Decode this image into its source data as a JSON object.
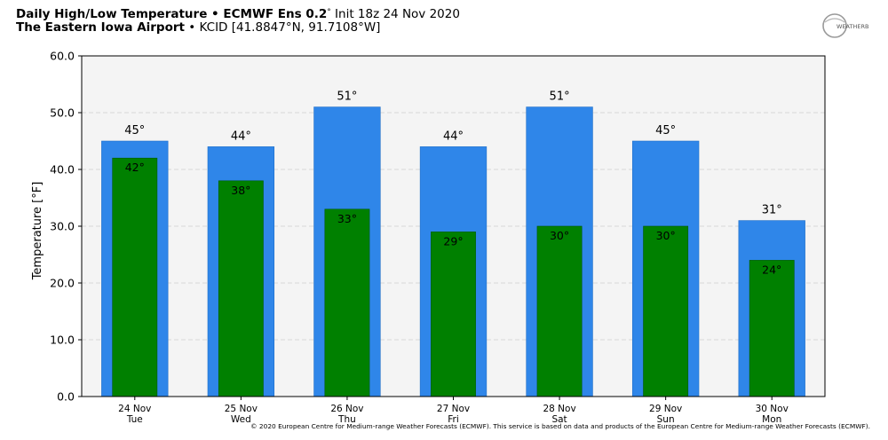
{
  "header": {
    "line1_bold": "Daily High/Low Temperature • ECMWF Ens 0.2",
    "line1_degree": "°",
    "line1_rest": " Init 18z 24 Nov 2020",
    "line2_bold": "The Eastern Iowa Airport",
    "line2_rest": " • KCID [41.8847°N, 91.7108°W]"
  },
  "logo": {
    "text": "WEATHERBELL",
    "icon": "weatherbell-logo-icon"
  },
  "footer": {
    "copyright": "© 2020 European Centre for Medium-range Weather Forecasts (ECMWF). This service is based on data and products of the European Centre for Medium-range Weather Forecasts (ECMWF)."
  },
  "colors": {
    "high_bar": "#2f86e9",
    "low_bar": "#008000",
    "plot_bg": "#f4f4f4",
    "grid": "#d0d0d0"
  },
  "chart_data": {
    "type": "bar",
    "ylabel": "Temperature [°F]",
    "ylim": [
      0,
      60
    ],
    "yticks": [
      "0.0",
      "10.0",
      "20.0",
      "30.0",
      "40.0",
      "50.0",
      "60.0"
    ],
    "grid": true,
    "categories": [
      {
        "date": "24 Nov",
        "day": "Tue"
      },
      {
        "date": "25 Nov",
        "day": "Wed"
      },
      {
        "date": "26 Nov",
        "day": "Thu"
      },
      {
        "date": "27 Nov",
        "day": "Fri"
      },
      {
        "date": "28 Nov",
        "day": "Sat"
      },
      {
        "date": "29 Nov",
        "day": "Sun"
      },
      {
        "date": "30 Nov",
        "day": "Mon"
      }
    ],
    "series": [
      {
        "key": "high",
        "values": [
          45,
          44,
          51,
          44,
          51,
          45,
          31
        ],
        "labels": [
          "45°",
          "44°",
          "51°",
          "44°",
          "51°",
          "45°",
          "31°"
        ]
      },
      {
        "key": "low",
        "values": [
          42,
          38,
          33,
          29,
          30,
          30,
          24
        ],
        "labels": [
          "42°",
          "38°",
          "33°",
          "29°",
          "30°",
          "30°",
          "24°"
        ]
      }
    ]
  }
}
